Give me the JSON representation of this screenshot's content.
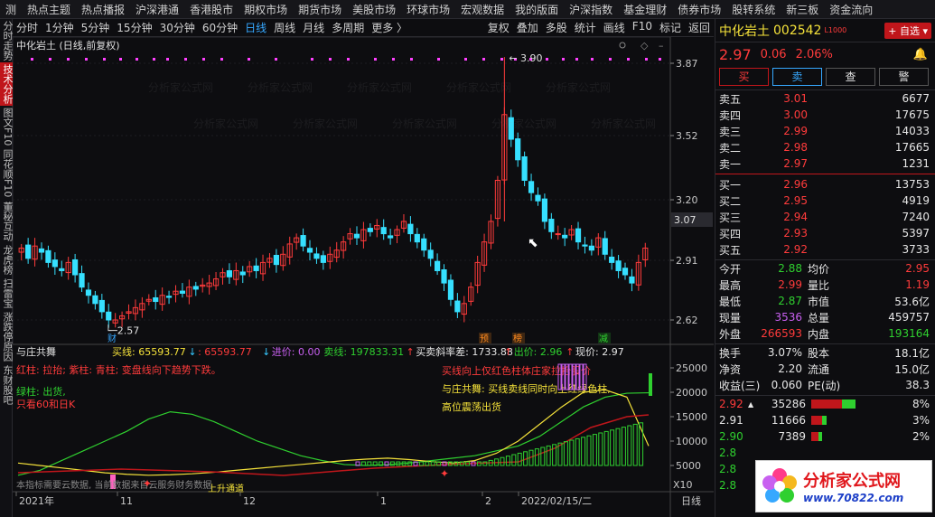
{
  "top_nav": [
    "测",
    "热点主题",
    "热点播报",
    "沪深港通",
    "香港股市",
    "期权市场",
    "期货市场",
    "美股市场",
    "环球市场",
    "宏观数据",
    "我的版面",
    "沪深指数",
    "基金理财",
    "债券市场",
    "股转系统",
    "新三板",
    "资金流向"
  ],
  "left_nav": [
    {
      "label": "分时走势",
      "active": false
    },
    {
      "label": "技术分析",
      "active": true
    },
    {
      "label": "图文F10",
      "active": false
    },
    {
      "label": "同花顺F10",
      "active": false
    },
    {
      "label": "董秘互动",
      "active": false
    },
    {
      "label": "龙虎榜",
      "active": false
    },
    {
      "label": "扫雷宝",
      "active": false
    },
    {
      "label": "涨跌停原因",
      "active": false
    },
    {
      "label": "东财股吧",
      "active": false
    }
  ],
  "period_tabs": [
    {
      "label": "分时",
      "active": false
    },
    {
      "label": "1分钟",
      "active": false
    },
    {
      "label": "5分钟",
      "active": false
    },
    {
      "label": "15分钟",
      "active": false
    },
    {
      "label": "30分钟",
      "active": false
    },
    {
      "label": "60分钟",
      "active": false
    },
    {
      "label": "日线",
      "active": true
    },
    {
      "label": "周线",
      "active": false
    },
    {
      "label": "月线",
      "active": false
    },
    {
      "label": "多周期",
      "active": false
    },
    {
      "label": "更多 〉",
      "active": false
    }
  ],
  "chart_tools": [
    "复权",
    "叠加",
    "多股",
    "统计",
    "画线",
    "F10",
    "标记",
    "返回"
  ],
  "main_chart": {
    "title": "中化岩土 (日线,前复权)",
    "y_ticks": [
      "3.87",
      "3.52",
      "3.20",
      "2.91",
      "2.62"
    ],
    "price_tag": "3.07",
    "high_label": "3.90",
    "low_label": "2.57",
    "markers": [
      {
        "text": "财",
        "color": "#36a8ff"
      },
      {
        "text": "预",
        "color": "#ff8a1e"
      },
      {
        "text": "榜",
        "color": "#ff8a1e"
      },
      {
        "text": "减",
        "color": "#2fd02f"
      }
    ],
    "colors": {
      "up": "#ff3b3b",
      "down": "#36e0ff",
      "grid": "#2a2a30"
    }
  },
  "indicator": {
    "name": "与庄共舞",
    "values": [
      {
        "text": "买线: 65593.77",
        "color": "#f5e23a"
      },
      {
        "text": "↓",
        "color": "#36c8ff"
      },
      {
        "text": ": 65593.77",
        "color": "#ff3b3b"
      },
      {
        "text": "↓",
        "color": "#36c8ff"
      },
      {
        "text": "进价: 0.00",
        "color": "#c860f0"
      },
      {
        "text": "卖线: 197833.31",
        "color": "#2fd02f"
      },
      {
        "text": "↑",
        "color": "#ff3b3b"
      },
      {
        "text": "买卖斜率差: 1733.88",
        "color": "#e6e6e6"
      },
      {
        "text": "↑",
        "color": "#ff3b3b"
      },
      {
        "text": "出价: 2.96",
        "color": "#2fd02f"
      },
      {
        "text": "↑",
        "color": "#ff3b3b"
      },
      {
        "text": "现价: 2.97",
        "color": "#e6e6e6"
      }
    ],
    "legend_left": [
      {
        "text": "红柱: 拉抬; 紫柱: 青柱; 变盘线向下趋势下跌。",
        "color": "#ff3b3b"
      },
      {
        "text": "绿柱: 出货,",
        "color": "#2fd02f"
      },
      {
        "text": "只看60和日K",
        "color": "#ff3b3b"
      }
    ],
    "legend_right": [
      {
        "text": "买线向上仅红色柱体庄家拉抬股价",
        "color": "#ff3b3b"
      },
      {
        "text": "与庄共舞: 买线卖线同时向上红绿色柱,",
        "color": "#f5e23a"
      },
      {
        "text": "高位震荡出货",
        "color": "#f5e23a"
      }
    ],
    "y_ticks": [
      "25000",
      "20000",
      "15000",
      "10000",
      "5000"
    ],
    "bottom_note": "本指标需要云数据, 当前数据来自云服务财务数据",
    "bottom_tag": "上升通道"
  },
  "x_axis": {
    "labels": [
      "2021年",
      "11",
      "12",
      "1",
      "2",
      "2022/02/15/二"
    ],
    "right_btns": [
      "X10",
      "日线"
    ]
  },
  "quote": {
    "name": "中化岩土",
    "code": "002542",
    "flag": "L1000",
    "add_btn": "+ 自选",
    "price": "2.97",
    "change": "0.06",
    "pct": "2.06%",
    "actions": [
      "买",
      "卖",
      "查",
      "警"
    ],
    "sell": [
      [
        "卖五",
        "3.01",
        "6677",
        "red"
      ],
      [
        "卖四",
        "3.00",
        "17675",
        "red"
      ],
      [
        "卖三",
        "2.99",
        "14033",
        "red"
      ],
      [
        "卖二",
        "2.98",
        "17665",
        "red"
      ],
      [
        "卖一",
        "2.97",
        "1231",
        "red"
      ]
    ],
    "buy": [
      [
        "买一",
        "2.96",
        "13753",
        "red"
      ],
      [
        "买二",
        "2.95",
        "4919",
        "red"
      ],
      [
        "买三",
        "2.94",
        "7240",
        "red"
      ],
      [
        "买四",
        "2.93",
        "5397",
        "red"
      ],
      [
        "买五",
        "2.92",
        "3733",
        "red"
      ]
    ],
    "stats": [
      [
        "今开",
        "2.88",
        "green",
        "均价",
        "2.95",
        "red"
      ],
      [
        "最高",
        "2.99",
        "red",
        "量比",
        "1.19",
        "red"
      ],
      [
        "最低",
        "2.87",
        "green",
        "市值",
        "53.6亿",
        "white"
      ],
      [
        "现量",
        "3536",
        "purple",
        "总量",
        "459757",
        "white"
      ],
      [
        "外盘",
        "266593",
        "red",
        "内盘",
        "193164",
        "green"
      ]
    ],
    "stats2": [
      [
        "换手",
        "3.07%",
        "white",
        "股本",
        "18.1亿",
        "white"
      ],
      [
        "净资",
        "2.20",
        "white",
        "流通",
        "15.0亿",
        "white"
      ],
      [
        "收益(三)",
        "0.060",
        "white",
        "PE(动)",
        "38.3",
        "white"
      ]
    ],
    "ticks": [
      {
        "price": "2.92",
        "color": "red",
        "arrow": "▲",
        "vol": "35286",
        "pct": "8%",
        "bar": 0.85
      },
      {
        "price": "2.91",
        "color": "white",
        "arrow": "",
        "vol": "11666",
        "pct": "3%",
        "bar": 0.3
      },
      {
        "price": "2.90",
        "color": "green",
        "arrow": "",
        "vol": "7389",
        "pct": "2%",
        "bar": 0.2
      }
    ],
    "ticks_tail": [
      "2.8",
      "2.8",
      "2.8"
    ]
  },
  "watermark": "分析家公式网",
  "logo": {
    "text": "分析家公式网",
    "url": "www.70822.com"
  }
}
